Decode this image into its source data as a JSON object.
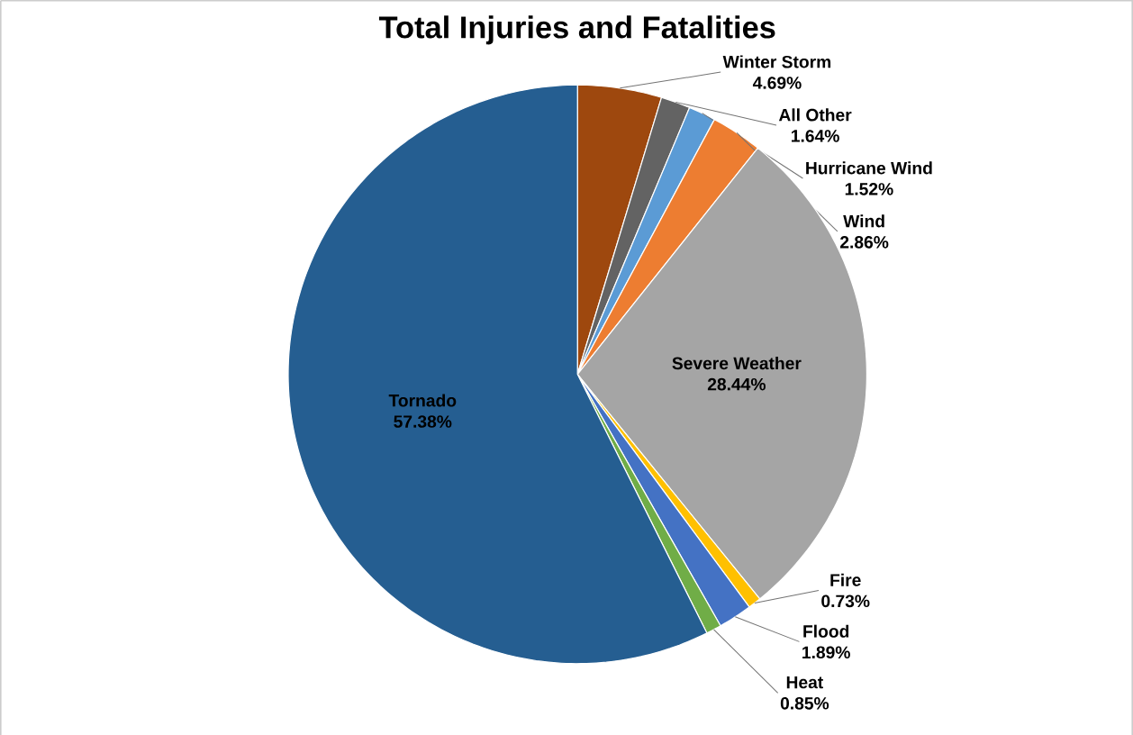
{
  "chart_data": {
    "type": "pie",
    "title": "Total Injuries and Fatalities",
    "categories": [
      "Winter Storm",
      "All Other",
      "Hurricane Wind",
      "Wind",
      "Severe Weather",
      "Fire",
      "Flood",
      "Heat",
      "Tornado"
    ],
    "values": [
      4.69,
      1.64,
      1.52,
      2.86,
      28.44,
      0.73,
      1.89,
      0.85,
      57.38
    ],
    "value_labels": [
      "4.69%",
      "1.64%",
      "1.52%",
      "2.86%",
      "28.44%",
      "0.73%",
      "1.89%",
      "0.85%",
      "57.38%"
    ],
    "colors": [
      "#9e480e",
      "#636363",
      "#5b9bd5",
      "#ed7d31",
      "#a5a5a5",
      "#ffc000",
      "#4472c4",
      "#70ad47",
      "#255e91"
    ],
    "legend": false
  }
}
